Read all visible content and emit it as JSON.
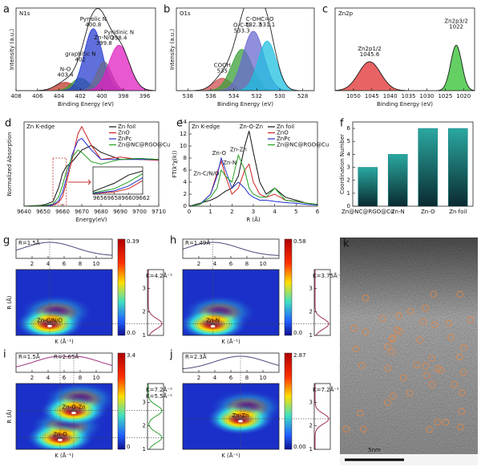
{
  "chart_data": [
    {
      "panel": "a",
      "type": "xps",
      "title": "N1s",
      "xlabel": "Binding Energy (eV)",
      "ylabel": "Intensity (a.u.)",
      "xlim": [
        408,
        395
      ],
      "xticks": [
        408,
        406,
        404,
        402,
        400,
        398,
        396
      ],
      "ylim": [
        0,
        1
      ],
      "peaks": [
        {
          "name": "N-O",
          "center": 403.4,
          "height": 0.1,
          "width": 0.9,
          "color": "#c0392b"
        },
        {
          "name": "graphitic N",
          "center": 402,
          "height": 0.15,
          "width": 0.8,
          "color": "#3a9a3a"
        },
        {
          "name": "Pyrrolic N",
          "center": 400.8,
          "height": 0.75,
          "width": 0.85,
          "color": "#2a3fd0"
        },
        {
          "name": "Zn-N/O",
          "center": 399.8,
          "height": 0.35,
          "width": 0.7,
          "color": "#6a6a8a"
        },
        {
          "name": "Pyridinic N",
          "center": 398.4,
          "height": 0.55,
          "width": 0.95,
          "color": "#e020c0"
        }
      ]
    },
    {
      "panel": "b",
      "type": "xps",
      "title": "O1s",
      "xlabel": "Binding Energy (eV)",
      "ylabel": "Intensity (a.u.)",
      "xlim": [
        539,
        527
      ],
      "xticks": [
        538,
        536,
        534,
        532,
        530,
        528
      ],
      "ylim": [
        0,
        1
      ],
      "peaks": [
        {
          "name": "COOH",
          "center": 535,
          "height": 0.15,
          "width": 0.8,
          "color": "#d05050"
        },
        {
          "name": "O-C-O",
          "center": 533.3,
          "height": 0.5,
          "width": 0.9,
          "color": "#3aa03a"
        },
        {
          "name": "C-OH",
          "center": 532.3,
          "height": 0.72,
          "width": 0.9,
          "color": "#6a6ad0"
        },
        {
          "name": "C=O",
          "center": 531.1,
          "height": 0.6,
          "width": 0.8,
          "color": "#20c0e0"
        }
      ]
    },
    {
      "panel": "c",
      "type": "xps",
      "title": "Zn2p",
      "xlabel": "Binding Energy (eV)",
      "xlim": [
        1055,
        1017
      ],
      "xticks": [
        1050,
        1045,
        1040,
        1035,
        1030,
        1025,
        1020
      ],
      "ylim": [
        0,
        1
      ],
      "peaks": [
        {
          "name": "Zn2p1/2",
          "center": 1045.6,
          "height": 0.35,
          "width": 3,
          "color": "#e03030"
        },
        {
          "name": "Zn2p3/2",
          "center": 1022,
          "height": 0.55,
          "width": 1.5,
          "color": "#30c030"
        }
      ]
    },
    {
      "panel": "d",
      "type": "line",
      "title": "Zn K-edge",
      "xlabel": "Energy(eV)",
      "ylabel": "Normalized Absorption",
      "xlim": [
        9640,
        9710
      ],
      "xticks": [
        9640,
        9650,
        9660,
        9670,
        9680,
        9690,
        9700,
        9710
      ],
      "ylim": [
        0,
        1.8
      ],
      "x": [
        9640,
        9650,
        9655,
        9658,
        9660,
        9662,
        9665,
        9668,
        9670,
        9675,
        9680,
        9690,
        9700,
        9710
      ],
      "series": [
        {
          "name": "Zn foil",
          "color": "#111111",
          "values": [
            0,
            0.02,
            0.1,
            0.4,
            0.7,
            0.85,
            0.95,
            1.1,
            1.2,
            1.3,
            1.15,
            1.0,
            1.02,
            1.0
          ]
        },
        {
          "name": "ZnO",
          "color": "#d02020",
          "values": [
            0,
            0,
            0.02,
            0.08,
            0.2,
            0.5,
            1.0,
            1.55,
            1.7,
            1.3,
            1.0,
            1.05,
            1.0,
            0.98
          ]
        },
        {
          "name": "ZnPc",
          "color": "#2030d0",
          "values": [
            0,
            0,
            0.03,
            0.12,
            0.3,
            0.6,
            1.1,
            1.4,
            1.45,
            1.2,
            1.0,
            1.0,
            1.0,
            1.0
          ]
        },
        {
          "name": "Zn@NC@RGO@Cu",
          "color": "#20a020",
          "values": [
            0,
            0.01,
            0.05,
            0.2,
            0.45,
            0.75,
            1.05,
            1.2,
            1.15,
            0.95,
            0.9,
            1.0,
            1.02,
            1.0
          ]
        }
      ],
      "inset_xlim": [
        9655,
        9662
      ],
      "inset_xticks": [
        9656,
        9658,
        9660,
        9662
      ],
      "inset_ylim": [
        0,
        1
      ]
    },
    {
      "panel": "e",
      "type": "line",
      "title": "Zn K-edge",
      "xlabel": "R (Å)",
      "ylabel": "FT(k³χ(k))",
      "xlim": [
        0,
        6
      ],
      "xticks": [
        0,
        1,
        2,
        3,
        4,
        5,
        6
      ],
      "ylim": [
        0,
        14
      ],
      "yticks": [
        0,
        2,
        4,
        6,
        8,
        10,
        12,
        14
      ],
      "x": [
        0,
        0.5,
        1,
        1.3,
        1.5,
        1.7,
        2,
        2.3,
        2.6,
        2.8,
        3,
        3.3,
        3.6,
        4,
        4.5,
        5,
        5.5,
        6
      ],
      "series": [
        {
          "name": "Zn foil",
          "color": "#111111",
          "values": [
            0,
            0.5,
            1,
            1.5,
            2,
            2.5,
            3,
            5,
            10,
            12.5,
            9,
            4,
            2,
            3,
            1.5,
            1,
            0.5,
            0.3
          ]
        },
        {
          "name": "ZnO",
          "color": "#d02020",
          "values": [
            0,
            0.3,
            2,
            5.5,
            7.5,
            5,
            2,
            3,
            6,
            7,
            4,
            2,
            1.5,
            2,
            1,
            0.8,
            0.5,
            0.3
          ]
        },
        {
          "name": "ZnPc",
          "color": "#2030d0",
          "values": [
            0,
            0.3,
            2,
            5,
            8,
            6,
            3,
            4,
            3,
            2,
            1.5,
            1,
            1,
            0.8,
            0.6,
            0.5,
            0.3,
            0.2
          ]
        },
        {
          "name": "Zn@NC@RGO@Cu",
          "color": "#20a020",
          "values": [
            0,
            0.3,
            1.5,
            3,
            6,
            5,
            4,
            8.5,
            6,
            3,
            2,
            1.5,
            1.5,
            3,
            1,
            0.8,
            0.5,
            0.3
          ]
        }
      ],
      "annotations": [
        {
          "text": "Zn-O-Zn",
          "x": 2.9,
          "y": 13.2,
          "color": "#3a3ad0"
        },
        {
          "text": "Zn-O",
          "x": 1.4,
          "y": 8.8,
          "color": "#3a3ad0"
        },
        {
          "text": "Zn-Zn",
          "x": 2.3,
          "y": 9.4,
          "color": "#20a020"
        },
        {
          "text": "Zn-N",
          "x": 1.9,
          "y": 7.2,
          "color": "#111111"
        },
        {
          "text": "Zn-C/N/O",
          "x": 0.8,
          "y": 5.4,
          "color": "#d02020"
        }
      ]
    },
    {
      "panel": "f",
      "type": "bar",
      "ylabel": "Coordination Number",
      "categories": [
        "Zn@NC@RGO@Cu",
        "Zn-N",
        "Zn-O",
        "Zn foil"
      ],
      "values": [
        3,
        4,
        6,
        6
      ],
      "color": "#1a8a8a",
      "ylim": [
        0,
        6.5
      ],
      "yticks": [
        0,
        1,
        2,
        3,
        4,
        5,
        6
      ]
    },
    {
      "panel": "g",
      "type": "wavelet",
      "top_labels": [
        "R=1.5Å"
      ],
      "side_labels": [
        "K=4.2Å⁻¹"
      ],
      "xlabel": "K (Å⁻¹)",
      "ylabel": "R (Å)",
      "xlim": [
        0,
        12
      ],
      "xticks": [
        2,
        4,
        6,
        8,
        10
      ],
      "ylim": [
        1,
        3.8
      ],
      "yticks": [
        1,
        2,
        3
      ],
      "cbticks": [
        0.39,
        {
          "value": 0,
          "label": "0.0"
        }
      ],
      "curve_color": "#4a4a7a",
      "side_color": "#a03050",
      "peaks": [
        {
          "name": "Zn-C/N/O",
          "k": 4.2,
          "r": 1.5
        }
      ]
    },
    {
      "panel": "h",
      "type": "wavelet",
      "top_labels": [
        "R=1.49Å"
      ],
      "side_labels": [
        "K=3.75Å⁻¹"
      ],
      "xlabel": "K (Å⁻¹)",
      "xlim": [
        0,
        12
      ],
      "xticks": [
        2,
        4,
        6,
        8,
        10
      ],
      "ylim": [
        1,
        3.8
      ],
      "yticks": [
        1,
        2,
        3
      ],
      "cbticks": [
        0.58,
        {
          "value": 0,
          "label": "0.0"
        }
      ],
      "curve_color": "#4a4a7a",
      "side_color": "#a03050",
      "peaks": [
        {
          "name": "Zn-N",
          "k": 3.75,
          "r": 1.49
        }
      ]
    },
    {
      "panel": "i",
      "type": "wavelet",
      "top_labels": [
        "R=1.5Å",
        "R=2.65Å"
      ],
      "side_labels": [
        "K=7.2Å⁻¹",
        "K=5.5Å⁻¹"
      ],
      "xlabel": "K (Å⁻¹)",
      "ylabel": "R (Å)",
      "xlim": [
        0,
        12
      ],
      "xticks": [
        2,
        4,
        6,
        8,
        10
      ],
      "ylim": [
        1,
        3.8
      ],
      "yticks": [
        1,
        2,
        3
      ],
      "cbticks": [
        3.4,
        0
      ],
      "curve_color": "#a03080",
      "side_color": "#30a030",
      "peaks": [
        {
          "name": "Zn-O",
          "k": 5.5,
          "r": 1.5
        },
        {
          "name": "Zn-O-Zn",
          "k": 7.2,
          "r": 2.65
        }
      ]
    },
    {
      "panel": "j",
      "type": "wavelet",
      "top_labels": [
        "R=2.3Å"
      ],
      "side_labels": [
        "K=7.2Å⁻¹"
      ],
      "xlabel": "K (Å⁻¹)",
      "xlim": [
        0,
        12
      ],
      "xticks": [
        2,
        4,
        6,
        8,
        10
      ],
      "ylim": [
        1,
        3.8
      ],
      "yticks": [
        1,
        2,
        3
      ],
      "cbticks": [
        2.87,
        {
          "value": 0,
          "label": "0.00"
        }
      ],
      "curve_color": "#4a4a7a",
      "side_color": "#a03050",
      "peaks": [
        {
          "name": "Zn-Zn",
          "k": 7.2,
          "r": 2.3
        }
      ]
    }
  ],
  "image": {
    "panel": "k",
    "scale_bar": "5nm"
  }
}
